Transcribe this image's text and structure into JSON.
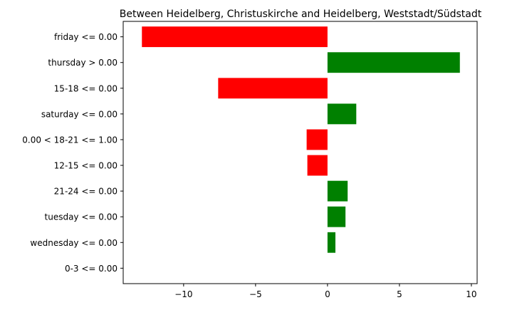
{
  "chart_data": {
    "type": "bar",
    "orientation": "horizontal",
    "title": "Between Heidelberg, Christuskirche and Heidelberg, Weststadt/Südstadt",
    "xlabel": "",
    "ylabel": "",
    "xlim": [
      -14.2,
      10.4
    ],
    "xticks": [
      -10,
      -5,
      0,
      5,
      10
    ],
    "xtick_labels": [
      "−10",
      "−5",
      "0",
      "5",
      "10"
    ],
    "grid": false,
    "positive_color": "#008000",
    "negative_color": "#ff0000",
    "bars": [
      {
        "label": "friday <= 0.00",
        "value": -12.9
      },
      {
        "label": "thursday > 0.00",
        "value": 9.2
      },
      {
        "label": "15-18 <= 0.00",
        "value": -7.6
      },
      {
        "label": "saturday <= 0.00",
        "value": 2.0
      },
      {
        "label": "0.00 < 18-21 <= 1.00",
        "value": -1.45
      },
      {
        "label": "12-15 <= 0.00",
        "value": -1.4
      },
      {
        "label": "21-24 <= 0.00",
        "value": 1.4
      },
      {
        "label": "tuesday <= 0.00",
        "value": 1.25
      },
      {
        "label": "wednesday <= 0.00",
        "value": 0.55
      },
      {
        "label": "0-3 <= 0.00",
        "value": 0.0
      }
    ]
  }
}
